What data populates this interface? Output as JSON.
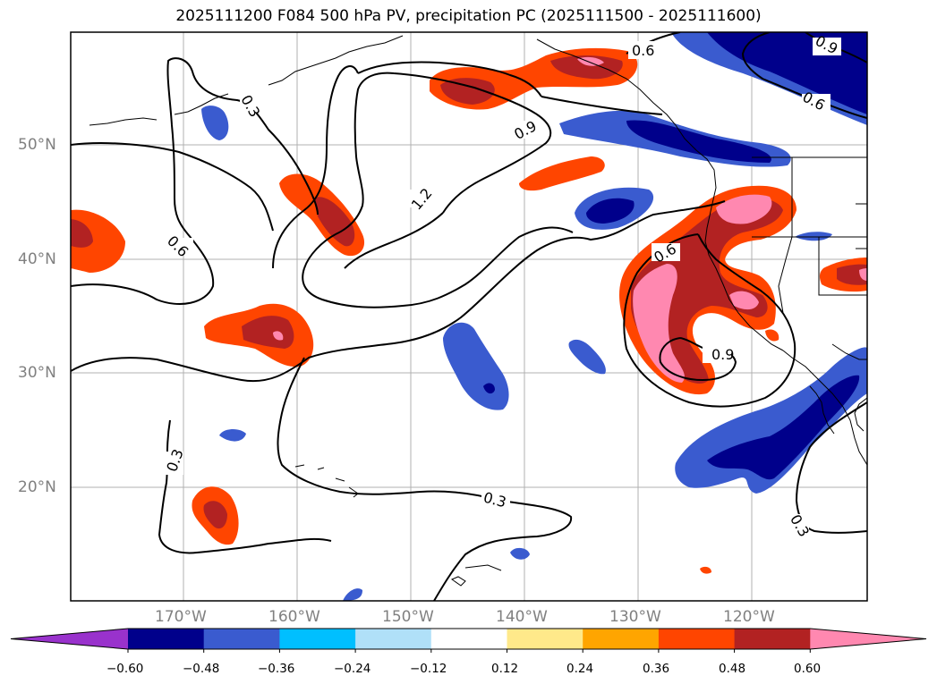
{
  "title": "2025111200 F084 500 hPa PV, precipitation PC (2025111500 - 2025111600)",
  "lat_labels": [
    "50°N",
    "40°N",
    "30°N",
    "20°N"
  ],
  "lon_labels": [
    "170°W",
    "160°W",
    "150°W",
    "140°W",
    "130°W",
    "120°W"
  ],
  "contour_labels": [
    "0.3",
    "0.6",
    "0.9",
    "1.2",
    "0.6",
    "0.9",
    "0.6",
    "0.9",
    "0.6",
    "0.3",
    "0.3",
    "0.3"
  ],
  "colorbar": {
    "ticks": [
      "−0.60",
      "−0.48",
      "−0.36",
      "−0.24",
      "−0.12",
      "0.12",
      "0.24",
      "0.36",
      "0.48",
      "0.60"
    ],
    "colors": [
      "#9932cc",
      "#00008b",
      "#3a5bcf",
      "#00bfff",
      "#b0e0f8",
      "#ffffff",
      "#ffe98a",
      "#ffa500",
      "#ff4500",
      "#b22222",
      "#ff88b0"
    ]
  }
}
